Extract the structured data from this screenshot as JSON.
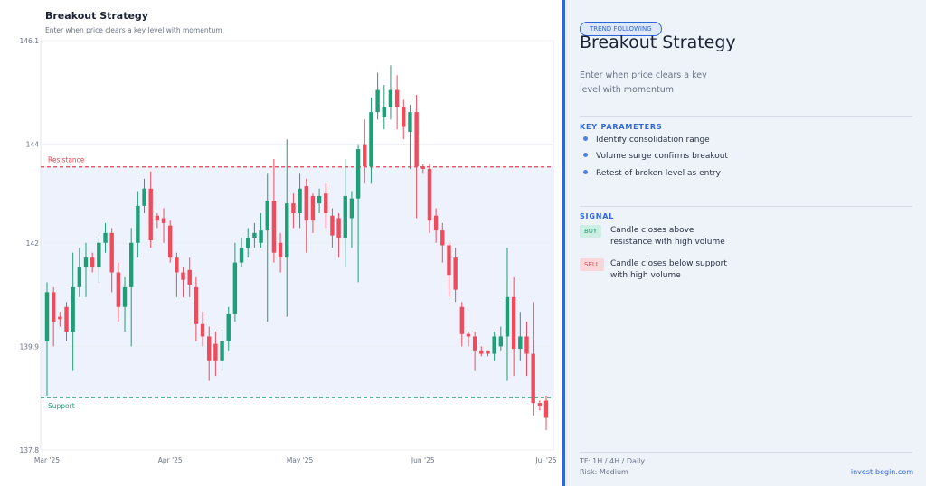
{
  "chart_data": {
    "type": "candlestick",
    "title": "Breakout Strategy",
    "subtitle": "Enter when price clears a key level with momentum",
    "categories": [
      "Mar '25",
      null,
      null,
      null,
      null,
      null,
      null,
      null,
      null,
      null,
      null,
      null,
      null,
      null,
      null,
      null,
      null,
      null,
      null,
      "Apr '25",
      null,
      null,
      null,
      null,
      null,
      null,
      null,
      null,
      null,
      null,
      null,
      null,
      null,
      null,
      null,
      null,
      null,
      null,
      null,
      "May '25",
      null,
      null,
      null,
      null,
      null,
      null,
      null,
      null,
      null,
      null,
      null,
      null,
      null,
      null,
      null,
      null,
      null,
      null,
      "Jun '25",
      null,
      null,
      null,
      null,
      null,
      null,
      null,
      null,
      null,
      null,
      null,
      null,
      null,
      null,
      null,
      null,
      null,
      null,
      "Jul '25"
    ],
    "open": [
      140.0,
      141.0,
      140.5,
      140.7,
      140.2,
      141.1,
      141.5,
      141.7,
      141.5,
      142.0,
      142.2,
      141.4,
      140.7,
      141.1,
      142.0,
      142.75,
      143.1,
      142.55,
      142.5,
      142.35,
      141.7,
      141.4,
      141.45,
      141.1,
      140.35,
      140.1,
      139.95,
      139.6,
      140.0,
      140.55,
      141.6,
      141.9,
      142.1,
      142.0,
      142.25,
      142.85,
      142.0,
      141.7,
      142.8,
      142.6,
      143.15,
      142.95,
      142.8,
      143.0,
      142.55,
      142.5,
      142.1,
      142.5,
      142.9,
      144.0,
      143.55,
      144.65,
      144.55,
      144.75,
      145.1,
      144.75,
      144.25,
      144.65,
      143.55,
      143.5,
      142.55,
      142.25,
      141.95,
      141.7,
      140.7,
      140.15,
      140.1,
      139.8,
      139.8,
      139.75,
      139.9,
      140.1,
      140.9,
      139.85,
      140.1,
      139.75,
      138.75,
      138.8
    ],
    "high": [
      141.2,
      141.1,
      140.6,
      140.8,
      141.8,
      141.9,
      142.0,
      141.8,
      142.1,
      142.4,
      142.3,
      141.6,
      141.3,
      142.3,
      143.05,
      143.3,
      143.45,
      142.6,
      142.7,
      142.45,
      141.8,
      141.5,
      141.7,
      141.3,
      140.6,
      140.3,
      140.2,
      140.2,
      140.7,
      142.0,
      142.1,
      142.3,
      142.4,
      142.6,
      143.4,
      143.7,
      142.2,
      144.1,
      143.0,
      143.4,
      143.3,
      143.0,
      143.1,
      143.2,
      142.7,
      142.6,
      143.7,
      143.05,
      144.0,
      144.5,
      144.95,
      145.45,
      145.2,
      145.6,
      145.4,
      144.9,
      144.8,
      145.0,
      143.6,
      143.6,
      142.7,
      142.4,
      142.0,
      141.9,
      140.8,
      140.2,
      140.2,
      139.9,
      139.8,
      140.2,
      140.3,
      141.9,
      141.3,
      140.6,
      140.4,
      140.8,
      138.8,
      138.9
    ],
    "low": [
      138.9,
      139.9,
      140.3,
      140.0,
      139.4,
      140.9,
      140.9,
      141.4,
      141.2,
      141.8,
      141.0,
      140.4,
      140.2,
      139.9,
      141.7,
      142.6,
      141.9,
      142.3,
      142.0,
      141.6,
      140.9,
      140.9,
      140.9,
      140.0,
      139.9,
      139.2,
      139.3,
      139.4,
      139.8,
      140.4,
      141.5,
      141.7,
      141.9,
      141.9,
      140.4,
      141.6,
      141.4,
      140.5,
      142.3,
      142.3,
      141.8,
      142.2,
      142.6,
      142.3,
      141.9,
      141.7,
      141.5,
      141.9,
      141.2,
      143.2,
      143.2,
      144.5,
      144.3,
      144.5,
      144.3,
      144.1,
      143.5,
      142.5,
      143.4,
      142.2,
      142.0,
      141.6,
      140.9,
      140.8,
      139.9,
      139.9,
      139.4,
      139.7,
      139.7,
      139.6,
      139.8,
      139.2,
      139.3,
      139.6,
      139.3,
      138.5,
      138.6,
      138.2
    ],
    "close": [
      141.0,
      140.4,
      140.45,
      140.2,
      141.1,
      141.5,
      141.7,
      141.5,
      142.0,
      142.2,
      141.4,
      140.7,
      141.1,
      142.0,
      142.75,
      143.1,
      142.05,
      142.45,
      142.4,
      141.7,
      141.4,
      141.25,
      141.15,
      140.35,
      140.1,
      139.6,
      139.6,
      140.0,
      140.55,
      141.6,
      141.9,
      142.1,
      142.2,
      142.25,
      142.85,
      141.8,
      141.7,
      142.8,
      142.6,
      143.1,
      142.45,
      142.45,
      142.95,
      142.6,
      142.15,
      142.1,
      142.95,
      142.9,
      143.9,
      143.55,
      144.65,
      145.1,
      144.75,
      145.1,
      144.75,
      144.35,
      144.65,
      143.55,
      143.5,
      142.45,
      142.25,
      141.95,
      141.35,
      141.05,
      140.15,
      140.1,
      139.8,
      139.75,
      139.75,
      140.1,
      140.1,
      140.9,
      139.85,
      140.1,
      139.75,
      138.75,
      138.7,
      138.45
    ],
    "up_color": "#1f9e78",
    "down_color": "#ef4b5c",
    "ylim": [
      137.8,
      146.1
    ],
    "yticks": [
      137.8,
      139.9,
      142.0,
      144.0,
      146.1
    ],
    "grid": true,
    "levels": [
      {
        "label": "Resistance",
        "value": 143.54,
        "color": "#e8404f"
      },
      {
        "label": "Support",
        "value": 138.86,
        "color": "#1f9e78"
      }
    ],
    "band_color": "#edf2fc"
  },
  "panel": {
    "badge": "TREND FOLLOWING",
    "title": "Breakout Strategy",
    "description": "Enter when price clears a key level with momentum",
    "key_heading": "KEY PARAMETERS",
    "key_parameters": [
      "Identify consolidation range",
      "Volume surge confirms breakout",
      "Retest of broken level as entry"
    ],
    "signal_heading": "SIGNAL",
    "signals": [
      {
        "tag": "BUY",
        "text": "Candle closes above resistance with high volume"
      },
      {
        "tag": "SELL",
        "text": "Candle closes below support with high volume"
      }
    ],
    "timeframe": "TF: 1H / 4H / Daily",
    "risk": "Risk: Medium",
    "site": "invest-begin.com"
  }
}
